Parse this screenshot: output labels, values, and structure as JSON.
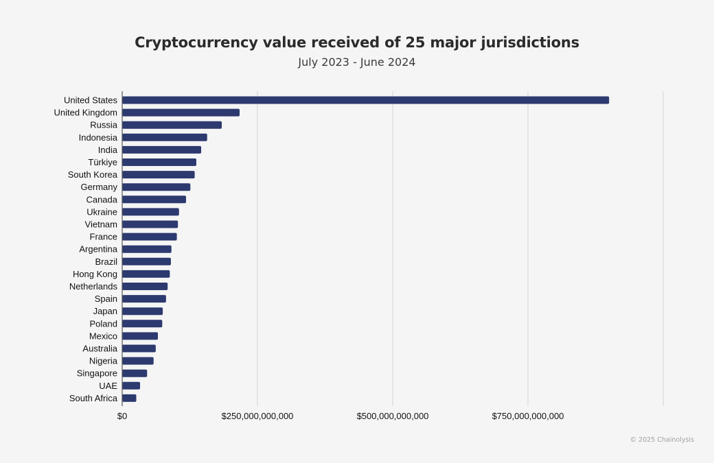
{
  "header": {
    "title": "Cryptocurrency value received of 25 major jurisdictions",
    "subtitle": "July 2023 - June 2024"
  },
  "footer": {
    "credit": "© 2025 Chainolysis"
  },
  "colors": {
    "bar": "#2d3a6f",
    "grid": "#d4d4d4",
    "axis": "#555555",
    "background": "#f5f5f5"
  },
  "chart_data": {
    "type": "bar",
    "orientation": "horizontal",
    "title": "Cryptocurrency value received of 25 major jurisdictions",
    "subtitle": "July 2023 - June 2024",
    "xlabel": "",
    "ylabel": "",
    "categories": [
      "United States",
      "United Kingdom",
      "Russia",
      "Indonesia",
      "India",
      "Türkiye",
      "South Korea",
      "Germany",
      "Canada",
      "Ukraine",
      "Vietnam",
      "France",
      "Argentina",
      "Brazil",
      "Hong Kong",
      "Netherlands",
      "Spain",
      "Japan",
      "Poland",
      "Mexico",
      "Australia",
      "Nigeria",
      "Singapore",
      "UAE",
      "South Africa"
    ],
    "values": [
      900000000000,
      217000000000,
      184000000000,
      157000000000,
      146000000000,
      137000000000,
      134000000000,
      126000000000,
      118000000000,
      105000000000,
      103000000000,
      101000000000,
      91000000000,
      90000000000,
      88000000000,
      84000000000,
      81000000000,
      75000000000,
      74000000000,
      66000000000,
      62000000000,
      58000000000,
      46000000000,
      33000000000,
      26000000000
    ],
    "xlim": [
      0,
      1000000000000
    ],
    "xticks": [
      0,
      250000000000,
      500000000000,
      750000000000,
      1000000000000
    ],
    "xtick_labels": [
      "$0",
      "$250,000,000,000",
      "$500,000,000,000",
      "$750,000,000,000",
      ""
    ],
    "grid": true,
    "legend": "none"
  }
}
